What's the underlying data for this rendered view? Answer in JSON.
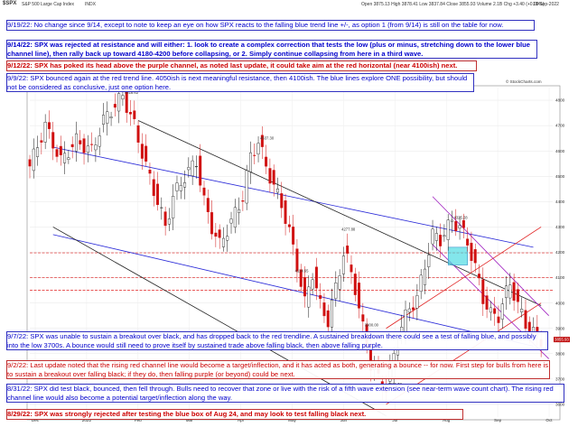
{
  "header": {
    "symbol": "$SPX",
    "name": "S&P 500 Large Cap Index",
    "exchange": "INDX",
    "stats": "Open 3875.13  High 3878.41  Low 3837.84  Close 3855.93  Volume 2.1B  Chg +3.40 (+0.09%)",
    "date": "19-Sep-2022",
    "site": "© StockCharts.com",
    "legend": "$SPX (Daily) 3855.93"
  },
  "notes_top": [
    {
      "date": "9/19/22:",
      "text": "No change since 9/14, except to note to keep an eye on how SPX reacts to the falling blue trend line +/-, as option 1 (from 9/14) is still on the table for now.",
      "color": "blue",
      "bold": false
    },
    {
      "date": "9/14/22:",
      "text": "SPX was rejected at resistance and will either:  1. look to create a complex correction that tests the low (plus or minus, stretching down to the lower blue channel line), then rally back up toward 4180-4200 before collapsing, or 2. Simply continue collapsing from here in a third wave.",
      "color": "blue",
      "bold": true
    },
    {
      "date": "9/12/22:",
      "text": "SPX has poked its head above the purple channel, as noted last update, it could take aim at the red horizontal (near 4100ish) next.",
      "color": "red",
      "bold": true
    },
    {
      "date": "9/9/22:",
      "text": "SPX bounced again at the red trend line.  4050ish is next meaningful resistance, then 4100ish.  The blue lines explore ONE possibility, but should not be considered as conclusive, just one option here.",
      "color": "blue",
      "bold": false
    }
  ],
  "notes_bottom": [
    {
      "date": "9/7/22:",
      "text": "SPX was unable to sustain a breakout over black, and has dropped back to the red trendline.  A sustained breakdown there could see a test of falling blue, and possibly into the low 3700s.  A bounce would still need to prove itself by sustained trade above falling black, then above falling purple.",
      "color": "blue",
      "bold": false
    },
    {
      "date": "9/2/22:",
      "text": "Last update noted that the rising red channel line would become a target/inflection, and it has acted as both, generating a bounce -- for now.  First step for bulls from here is to sustain a breakout over falling black; if they do, then falling purple (or beyond) could be next.",
      "color": "red",
      "bold": false
    },
    {
      "date": "8/31/22:",
      "text": "SPX did test black, bounced, then fell through.  Bulls need to recover that zone or live with the risk of a fifth wave extension (see near-term wave count chart).  The rising red channel line would also become a potential target/inflection along the way.",
      "color": "blue",
      "bold": false
    },
    {
      "date": "8/29/22:",
      "text": "SPX was strongly rejected after testing the blue box of Aug 24, and may look to test falling black next.",
      "color": "red",
      "bold": true
    }
  ],
  "chart_data": {
    "type": "candlestick",
    "title": "$SPX S&P 500 Large Cap Index INDX",
    "x_labels": [
      "Dec",
      "2022",
      "Feb",
      "Mar",
      "Apr",
      "May",
      "Jun",
      "Jul",
      "Aug",
      "Sep",
      "Oct"
    ],
    "y_ticks": [
      3600,
      3700,
      3800,
      3900,
      4000,
      4100,
      4200,
      4300,
      4400,
      4500,
      4600,
      4700,
      4800
    ],
    "ylim": [
      3550,
      4850
    ],
    "close_label": 3855.93,
    "price_labels": [
      {
        "value": 4818.62,
        "label": "4818.62"
      },
      {
        "value": 4637.3,
        "label": "4637.30"
      },
      {
        "value": 4277.88,
        "label": "4277.88"
      },
      {
        "value": 4114.65,
        "label": "4114.65"
      },
      {
        "value": 3666.77,
        "label": "3666.77"
      },
      {
        "value": 3900.0,
        "label": "3900.00"
      },
      {
        "value": 4325.28,
        "label": "4325.28"
      }
    ],
    "anchors": [
      [
        0,
        4540
      ],
      [
        4,
        4700
      ],
      [
        8,
        4560
      ],
      [
        12,
        4640
      ],
      [
        16,
        4600
      ],
      [
        19,
        4720
      ],
      [
        22,
        4780
      ],
      [
        24,
        4818
      ],
      [
        27,
        4700
      ],
      [
        30,
        4540
      ],
      [
        33,
        4400
      ],
      [
        35,
        4300
      ],
      [
        37,
        4420
      ],
      [
        40,
        4500
      ],
      [
        43,
        4560
      ],
      [
        45,
        4400
      ],
      [
        47,
        4300
      ],
      [
        49,
        4230
      ],
      [
        52,
        4320
      ],
      [
        55,
        4420
      ],
      [
        57,
        4580
      ],
      [
        59,
        4637
      ],
      [
        61,
        4540
      ],
      [
        63,
        4460
      ],
      [
        65,
        4390
      ],
      [
        67,
        4280
      ],
      [
        69,
        4150
      ],
      [
        71,
        4000
      ],
      [
        73,
        4120
      ],
      [
        75,
        3990
      ],
      [
        77,
        3930
      ],
      [
        79,
        4060
      ],
      [
        81,
        4200
      ],
      [
        82,
        4170
      ],
      [
        84,
        4060
      ],
      [
        86,
        3900
      ],
      [
        88,
        3760
      ],
      [
        90,
        3700
      ],
      [
        92,
        3666
      ],
      [
        94,
        3790
      ],
      [
        96,
        3910
      ],
      [
        98,
        3980
      ],
      [
        100,
        4020
      ],
      [
        102,
        4150
      ],
      [
        104,
        4270
      ],
      [
        106,
        4250
      ],
      [
        108,
        4300
      ],
      [
        109,
        4325
      ],
      [
        111,
        4300
      ],
      [
        113,
        4240
      ],
      [
        115,
        4140
      ],
      [
        117,
        4020
      ],
      [
        119,
        3955
      ],
      [
        121,
        3950
      ],
      [
        123,
        4040
      ],
      [
        124,
        4080
      ],
      [
        126,
        3990
      ],
      [
        128,
        3920
      ],
      [
        130,
        3880
      ],
      [
        132,
        3855
      ]
    ],
    "bar_count": 133,
    "lines": [
      {
        "color": "blue",
        "from": [
          6,
          4615
        ],
        "to": [
          130,
          4220
        ],
        "label": "falling blue (upper)"
      },
      {
        "color": "blue",
        "from": [
          6,
          4270
        ],
        "to": [
          130,
          3830
        ],
        "label": "falling blue (lower)"
      },
      {
        "color": "black",
        "from": [
          28,
          4720
        ],
        "to": [
          132,
          3990
        ],
        "label": "falling black"
      },
      {
        "color": "black",
        "from": [
          6,
          4300
        ],
        "to": [
          92,
          3555
        ],
        "label": "black support"
      },
      {
        "color": "red",
        "from": [
          92,
          3600
        ],
        "to": [
          132,
          4000
        ],
        "label": "rising red channel (lower)"
      },
      {
        "color": "red",
        "from": [
          92,
          3900
        ],
        "to": [
          132,
          4300
        ],
        "label": "rising red channel (upper)"
      },
      {
        "color": "purple",
        "from": [
          104,
          4420
        ],
        "to": [
          134,
          3950
        ],
        "label": "falling purple (upper)"
      },
      {
        "color": "purple",
        "from": [
          104,
          4230
        ],
        "to": [
          134,
          3780
        ],
        "label": "falling purple (lower)"
      }
    ],
    "h_lines": [
      {
        "value": 4198,
        "color": "red"
      },
      {
        "value": 4100,
        "color": "red"
      },
      {
        "value": 4050,
        "color": "red"
      }
    ],
    "box": {
      "x0": 108,
      "x1": 113,
      "y0": 4150,
      "y1": 4220,
      "color": "cyan"
    },
    "grid": true
  }
}
